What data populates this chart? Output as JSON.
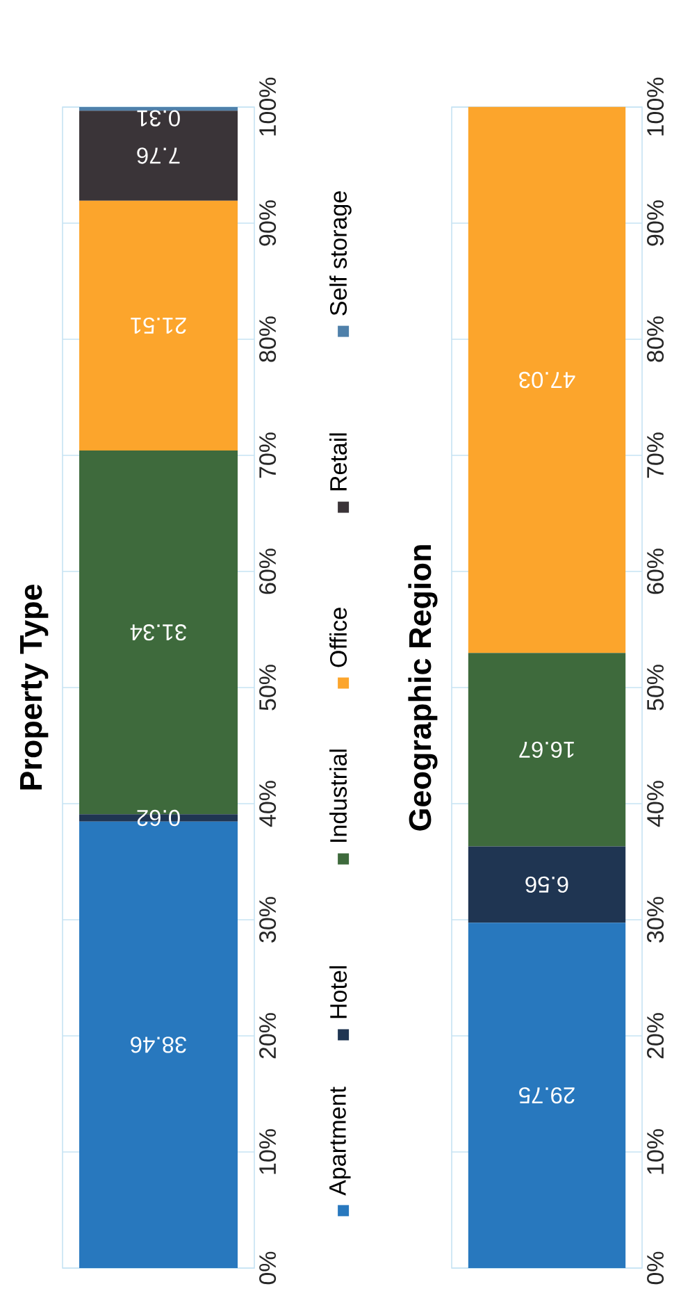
{
  "chart_data": [
    {
      "type": "bar",
      "title": "Property Type",
      "stacked": true,
      "categories": [
        null
      ],
      "series": [
        {
          "name": "Apartment",
          "color": "#2878be",
          "values": [
            38.46
          ]
        },
        {
          "name": "Hotel",
          "color": "#1f3552",
          "values": [
            0.62
          ]
        },
        {
          "name": "Industrial",
          "color": "#3e6a3c",
          "values": [
            31.34
          ]
        },
        {
          "name": "Office",
          "color": "#fca52c",
          "values": [
            21.51
          ]
        },
        {
          "name": "Retail",
          "color": "#3a3438",
          "values": [
            7.76
          ]
        },
        {
          "name": "Self storage",
          "color": "#4f80aa",
          "values": [
            0.31
          ]
        }
      ],
      "ylim": [
        0,
        100
      ],
      "yticks": [
        {
          "value": 0,
          "label": "0%"
        },
        {
          "value": 10,
          "label": "10%"
        },
        {
          "value": 20,
          "label": "20%"
        },
        {
          "value": 30,
          "label": "30%"
        },
        {
          "value": 40,
          "label": "40%"
        },
        {
          "value": 50,
          "label": "50%"
        },
        {
          "value": 60,
          "label": "60%"
        },
        {
          "value": 70,
          "label": "70%"
        },
        {
          "value": 80,
          "label": "80%"
        },
        {
          "value": 90,
          "label": "90%"
        },
        {
          "value": 100,
          "label": "100%"
        }
      ],
      "grid": "y",
      "legend": "right",
      "data_labels": true
    },
    {
      "type": "bar",
      "title": "Geographic Region",
      "stacked": true,
      "categories": [
        null
      ],
      "series": [
        {
          "color": "#2878be",
          "values": [
            29.75
          ]
        },
        {
          "color": "#1f3552",
          "values": [
            6.56
          ]
        },
        {
          "color": "#3e6a3c",
          "values": [
            16.67
          ]
        },
        {
          "color": "#fca52c",
          "values": [
            47.03
          ]
        }
      ],
      "ylim": [
        0,
        100
      ],
      "yticks": [
        {
          "value": 0,
          "label": "0%"
        },
        {
          "value": 10,
          "label": "10%"
        },
        {
          "value": 20,
          "label": "20%"
        },
        {
          "value": 30,
          "label": "30%"
        },
        {
          "value": 40,
          "label": "40%"
        },
        {
          "value": 50,
          "label": "50%"
        },
        {
          "value": 60,
          "label": "60%"
        },
        {
          "value": 70,
          "label": "70%"
        },
        {
          "value": 80,
          "label": "80%"
        },
        {
          "value": 90,
          "label": "90%"
        },
        {
          "value": 100,
          "label": "100%"
        }
      ],
      "grid": "y",
      "data_labels": true
    }
  ]
}
